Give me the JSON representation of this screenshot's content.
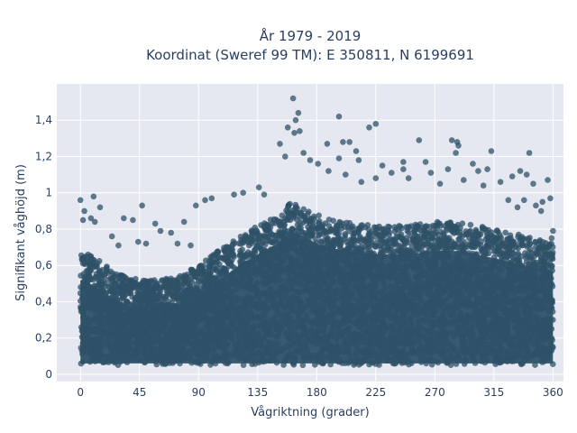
{
  "chart_data": {
    "type": "scatter",
    "title_line1": "År 1979 - 2019",
    "title_line2": "Koordinat (Sweref 99 TM): E 350811, N 6199691",
    "xlabel": "Vågriktning (grader)",
    "ylabel": "Signifikant våghöjd (m)",
    "xlim": [
      -18,
      368
    ],
    "ylim": [
      -0.04,
      1.6
    ],
    "x_ticks": [
      0,
      45,
      90,
      135,
      180,
      225,
      270,
      315,
      360
    ],
    "x_tick_labels": [
      "0",
      "45",
      "90",
      "135",
      "180",
      "225",
      "270",
      "315",
      "360"
    ],
    "y_ticks": [
      0,
      0.2,
      0.4,
      0.6,
      0.8,
      1.0,
      1.2,
      1.4
    ],
    "y_tick_labels": [
      "0",
      "0,2",
      "0,4",
      "0,6",
      "0,8",
      "1",
      "1,2",
      "1,4"
    ],
    "grid": true,
    "legend": "none",
    "series": [
      {
        "density_envelope": [
          {
            "x": 0,
            "y": 0.68
          },
          {
            "x": 10,
            "y": 0.65
          },
          {
            "x": 20,
            "y": 0.6
          },
          {
            "x": 30,
            "y": 0.55
          },
          {
            "x": 45,
            "y": 0.52
          },
          {
            "x": 60,
            "y": 0.52
          },
          {
            "x": 75,
            "y": 0.54
          },
          {
            "x": 90,
            "y": 0.6
          },
          {
            "x": 105,
            "y": 0.68
          },
          {
            "x": 120,
            "y": 0.75
          },
          {
            "x": 135,
            "y": 0.82
          },
          {
            "x": 150,
            "y": 0.88
          },
          {
            "x": 160,
            "y": 0.95
          },
          {
            "x": 170,
            "y": 0.92
          },
          {
            "x": 180,
            "y": 0.88
          },
          {
            "x": 200,
            "y": 0.84
          },
          {
            "x": 225,
            "y": 0.82
          },
          {
            "x": 250,
            "y": 0.82
          },
          {
            "x": 270,
            "y": 0.84
          },
          {
            "x": 290,
            "y": 0.84
          },
          {
            "x": 315,
            "y": 0.8
          },
          {
            "x": 340,
            "y": 0.76
          },
          {
            "x": 360,
            "y": 0.72
          }
        ],
        "min_value": 0.02,
        "outliers": [
          {
            "x": 162,
            "y": 1.52
          },
          {
            "x": 166,
            "y": 1.44
          },
          {
            "x": 164,
            "y": 1.4
          },
          {
            "x": 197,
            "y": 1.42
          },
          {
            "x": 225,
            "y": 1.38
          },
          {
            "x": 220,
            "y": 1.36
          },
          {
            "x": 158,
            "y": 1.36
          },
          {
            "x": 163,
            "y": 1.33
          },
          {
            "x": 167,
            "y": 1.34
          },
          {
            "x": 152,
            "y": 1.27
          },
          {
            "x": 188,
            "y": 1.27
          },
          {
            "x": 200,
            "y": 1.28
          },
          {
            "x": 205,
            "y": 1.28
          },
          {
            "x": 258,
            "y": 1.29
          },
          {
            "x": 283,
            "y": 1.29
          },
          {
            "x": 287,
            "y": 1.28
          },
          {
            "x": 288,
            "y": 1.26
          },
          {
            "x": 210,
            "y": 1.23
          },
          {
            "x": 313,
            "y": 1.23
          },
          {
            "x": 342,
            "y": 1.22
          },
          {
            "x": 286,
            "y": 1.22
          },
          {
            "x": 170,
            "y": 1.22
          },
          {
            "x": 175,
            "y": 1.18
          },
          {
            "x": 156,
            "y": 1.2
          },
          {
            "x": 197,
            "y": 1.19
          },
          {
            "x": 212,
            "y": 1.18
          },
          {
            "x": 246,
            "y": 1.17
          },
          {
            "x": 263,
            "y": 1.17
          },
          {
            "x": 299,
            "y": 1.16
          },
          {
            "x": 310,
            "y": 1.13
          },
          {
            "x": 303,
            "y": 1.12
          },
          {
            "x": 335,
            "y": 1.12
          },
          {
            "x": 230,
            "y": 1.15
          },
          {
            "x": 237,
            "y": 1.11
          },
          {
            "x": 246,
            "y": 1.13
          },
          {
            "x": 280,
            "y": 1.13
          },
          {
            "x": 267,
            "y": 1.11
          },
          {
            "x": 189,
            "y": 1.12
          },
          {
            "x": 202,
            "y": 1.1
          },
          {
            "x": 181,
            "y": 1.16
          },
          {
            "x": 356,
            "y": 1.07
          },
          {
            "x": 329,
            "y": 1.09
          },
          {
            "x": 340,
            "y": 1.1
          },
          {
            "x": 345,
            "y": 1.05
          },
          {
            "x": 320,
            "y": 1.06
          },
          {
            "x": 307,
            "y": 1.04
          },
          {
            "x": 292,
            "y": 1.07
          },
          {
            "x": 274,
            "y": 1.05
          },
          {
            "x": 250,
            "y": 1.08
          },
          {
            "x": 225,
            "y": 1.08
          },
          {
            "x": 214,
            "y": 1.06
          },
          {
            "x": 136,
            "y": 1.03
          },
          {
            "x": 140,
            "y": 0.99
          },
          {
            "x": 124,
            "y": 1.0
          },
          {
            "x": 117,
            "y": 0.99
          },
          {
            "x": 100,
            "y": 0.97
          },
          {
            "x": 95,
            "y": 0.96
          },
          {
            "x": 88,
            "y": 0.93
          },
          {
            "x": 10,
            "y": 0.98
          },
          {
            "x": 0,
            "y": 0.96
          },
          {
            "x": 47,
            "y": 0.93
          },
          {
            "x": 15,
            "y": 0.92
          },
          {
            "x": 3,
            "y": 0.9
          },
          {
            "x": 2,
            "y": 0.85
          },
          {
            "x": 8,
            "y": 0.86
          },
          {
            "x": 11,
            "y": 0.84
          },
          {
            "x": 33,
            "y": 0.86
          },
          {
            "x": 40,
            "y": 0.85
          },
          {
            "x": 57,
            "y": 0.83
          },
          {
            "x": 79,
            "y": 0.84
          },
          {
            "x": 69,
            "y": 0.78
          },
          {
            "x": 61,
            "y": 0.79
          },
          {
            "x": 24,
            "y": 0.76
          },
          {
            "x": 29,
            "y": 0.71
          },
          {
            "x": 44,
            "y": 0.73
          },
          {
            "x": 50,
            "y": 0.72
          },
          {
            "x": 84,
            "y": 0.71
          },
          {
            "x": 74,
            "y": 0.72
          },
          {
            "x": 358,
            "y": 0.97
          },
          {
            "x": 352,
            "y": 0.95
          },
          {
            "x": 351,
            "y": 0.9
          },
          {
            "x": 347,
            "y": 0.93
          },
          {
            "x": 338,
            "y": 0.96
          },
          {
            "x": 333,
            "y": 0.92
          },
          {
            "x": 326,
            "y": 0.96
          },
          {
            "x": 360,
            "y": 0.79
          },
          {
            "x": 359,
            "y": 0.75
          }
        ]
      }
    ],
    "marker_color": "#2f5168",
    "plot_bg": "#e5e8f0",
    "grid_color": "#ffffff",
    "text_color": "#2a3f5f"
  }
}
